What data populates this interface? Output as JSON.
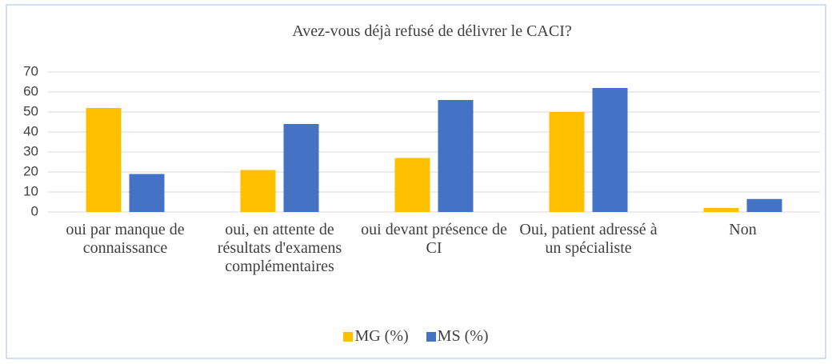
{
  "chart_data": {
    "type": "bar",
    "title": "Avez-vous déjà refusé de délivrer le CACI?",
    "categories": [
      "oui par manque de connaissance",
      "oui, en attente de résultats d'examens complémentaires",
      "oui devant présence de CI",
      "Oui, patient adressé à un spécialiste",
      "Non"
    ],
    "series": [
      {
        "name": "MG (%)",
        "color": "#ffc000",
        "values": [
          52,
          21,
          27,
          50,
          2
        ]
      },
      {
        "name": "MS (%)",
        "color": "#4472c4",
        "values": [
          19,
          44,
          56,
          62,
          6.5
        ]
      }
    ],
    "ylim": [
      0,
      70
    ],
    "yticks": [
      0,
      10,
      20,
      30,
      40,
      50,
      60,
      70
    ],
    "grid": true,
    "legend": "bottom"
  }
}
